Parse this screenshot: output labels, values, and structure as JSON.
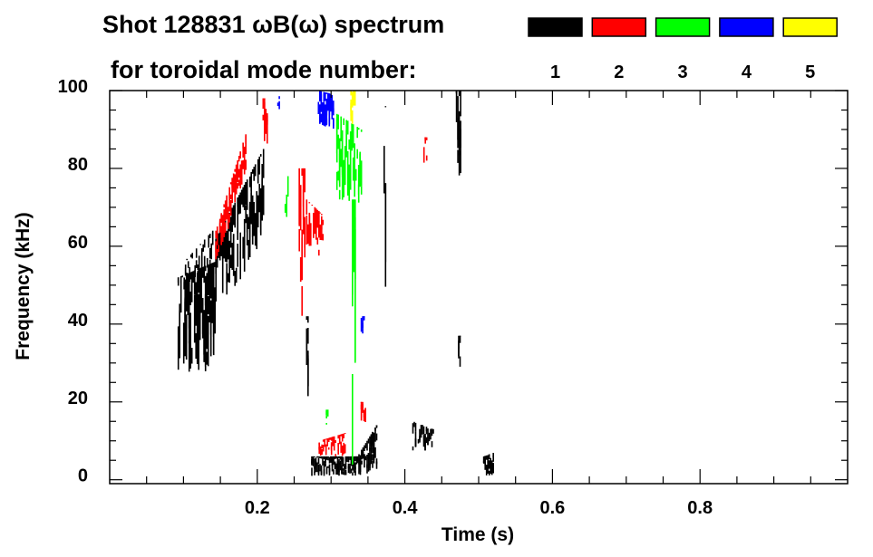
{
  "chart_data": {
    "type": "heatmap",
    "title": "Shot 128831 ωB(ω) spectrum",
    "subtitle": "for toroidal mode number:",
    "xlabel": "Time (s)",
    "ylabel": "Frequency (kHz)",
    "xlim": [
      0,
      1.0
    ],
    "ylim": [
      -1,
      100
    ],
    "xticks": [
      {
        "v": 0.2,
        "label": "0.2"
      },
      {
        "v": 0.4,
        "label": "0.4"
      },
      {
        "v": 0.6,
        "label": "0.6"
      },
      {
        "v": 0.8,
        "label": "0.8"
      }
    ],
    "yticks": [
      {
        "v": 0,
        "label": "0"
      },
      {
        "v": 20,
        "label": "20"
      },
      {
        "v": 40,
        "label": "40"
      },
      {
        "v": 60,
        "label": "60"
      },
      {
        "v": 80,
        "label": "80"
      },
      {
        "v": 100,
        "label": "100"
      }
    ],
    "x_minor_step": 0.05,
    "y_minor_step": 5,
    "grid": false,
    "legend": {
      "placement": "top-right",
      "entries": [
        {
          "label": "1",
          "color": "#000000"
        },
        {
          "label": "2",
          "color": "#ff0000"
        },
        {
          "label": "3",
          "color": "#00ff00"
        },
        {
          "label": "4",
          "color": "#0000ff"
        },
        {
          "label": "5",
          "color": "#ffff00"
        }
      ]
    },
    "patches": [
      {
        "mode": "1",
        "t": [
          0.092,
          0.143
        ],
        "f_start": [
          27,
          52
        ],
        "f_end": [
          28,
          56
        ],
        "density": 0.85
      },
      {
        "mode": "1",
        "t": [
          0.1,
          0.14
        ],
        "f_start": [
          48,
          56
        ],
        "f_end": [
          52,
          64
        ],
        "density": 0.3
      },
      {
        "mode": "1",
        "t": [
          0.143,
          0.21
        ],
        "f_start": [
          40,
          62
        ],
        "f_end": [
          62,
          85
        ],
        "density": 0.7
      },
      {
        "mode": "1",
        "t": [
          0.266,
          0.27
        ],
        "f_start": [
          16,
          42
        ],
        "f_end": [
          16,
          42
        ],
        "density": 0.9
      },
      {
        "mode": "1",
        "t": [
          0.273,
          0.335
        ],
        "f_start": [
          1,
          6
        ],
        "f_end": [
          1,
          6
        ],
        "density": 0.8
      },
      {
        "mode": "1",
        "t": [
          0.335,
          0.363
        ],
        "f_start": [
          1,
          6
        ],
        "f_end": [
          1,
          14
        ],
        "density": 0.9
      },
      {
        "mode": "1",
        "t": [
          0.371,
          0.374
        ],
        "f_start": [
          45,
          96
        ],
        "f_end": [
          45,
          96
        ],
        "density": 0.4
      },
      {
        "mode": "1",
        "t": [
          0.41,
          0.44
        ],
        "f_start": [
          7,
          15
        ],
        "f_end": [
          7,
          13
        ],
        "density": 0.5
      },
      {
        "mode": "1",
        "t": [
          0.469,
          0.477
        ],
        "f_start": [
          77,
          100
        ],
        "f_end": [
          77,
          100
        ],
        "density": 0.8
      },
      {
        "mode": "1",
        "t": [
          0.472,
          0.475
        ],
        "f_start": [
          29,
          37
        ],
        "f_end": [
          29,
          37
        ],
        "density": 0.7
      },
      {
        "mode": "1",
        "t": [
          0.506,
          0.52
        ],
        "f_start": [
          1,
          6
        ],
        "f_end": [
          1,
          7
        ],
        "density": 0.7
      },
      {
        "mode": "2",
        "t": [
          0.143,
          0.188
        ],
        "f_start": [
          54,
          64
        ],
        "f_end": [
          80,
          90
        ],
        "density": 0.7
      },
      {
        "mode": "2",
        "t": [
          0.207,
          0.215
        ],
        "f_start": [
          86,
          98
        ],
        "f_end": [
          86,
          98
        ],
        "density": 0.6
      },
      {
        "mode": "2",
        "t": [
          0.256,
          0.266
        ],
        "f_start": [
          42,
          80
        ],
        "f_end": [
          42,
          80
        ],
        "density": 0.7
      },
      {
        "mode": "2",
        "t": [
          0.266,
          0.29
        ],
        "f_start": [
          55,
          72
        ],
        "f_end": [
          58,
          68
        ],
        "density": 0.5
      },
      {
        "mode": "2",
        "t": [
          0.283,
          0.32
        ],
        "f_start": [
          6,
          10
        ],
        "f_end": [
          6,
          12
        ],
        "density": 0.6
      },
      {
        "mode": "2",
        "t": [
          0.34,
          0.348
        ],
        "f_start": [
          14,
          20
        ],
        "f_end": [
          14,
          20
        ],
        "density": 0.7
      },
      {
        "mode": "2",
        "t": [
          0.425,
          0.43
        ],
        "f_start": [
          80,
          88
        ],
        "f_end": [
          80,
          88
        ],
        "density": 0.5
      },
      {
        "mode": "3",
        "t": [
          0.237,
          0.243
        ],
        "f_start": [
          62,
          78
        ],
        "f_end": [
          62,
          78
        ],
        "density": 0.4
      },
      {
        "mode": "3",
        "t": [
          0.307,
          0.342
        ],
        "f_start": [
          72,
          94
        ],
        "f_end": [
          70,
          90
        ],
        "density": 0.75
      },
      {
        "mode": "3",
        "t": [
          0.328,
          0.334
        ],
        "f_start": [
          2,
          72
        ],
        "f_end": [
          2,
          72
        ],
        "density": 0.7
      },
      {
        "mode": "3",
        "t": [
          0.291,
          0.297
        ],
        "f_start": [
          14,
          18
        ],
        "f_end": [
          14,
          18
        ],
        "density": 0.6
      },
      {
        "mode": "4",
        "t": [
          0.282,
          0.305
        ],
        "f_start": [
          91,
          100
        ],
        "f_end": [
          90,
          99
        ],
        "density": 0.8
      },
      {
        "mode": "4",
        "t": [
          0.227,
          0.231
        ],
        "f_start": [
          95,
          99
        ],
        "f_end": [
          95,
          99
        ],
        "density": 0.5
      },
      {
        "mode": "4",
        "t": [
          0.34,
          0.345
        ],
        "f_start": [
          35,
          42
        ],
        "f_end": [
          35,
          42
        ],
        "density": 0.5
      },
      {
        "mode": "5",
        "t": [
          0.326,
          0.333
        ],
        "f_start": [
          91,
          100
        ],
        "f_end": [
          91,
          100
        ],
        "density": 0.8
      }
    ]
  }
}
